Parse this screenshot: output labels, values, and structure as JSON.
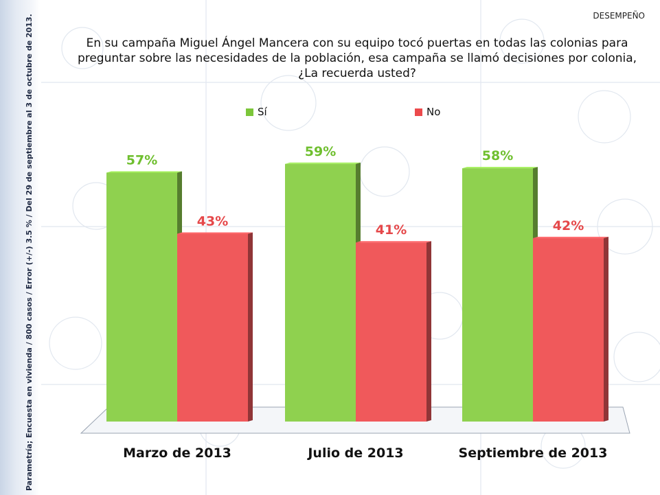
{
  "header": {
    "section": "DESEMPEÑO"
  },
  "sidenote": "Parametría; Encuesta en vivienda / 800 casos / Error (+/-) 3.5 % / Del 29 de septiembre al 3 de octubre de 2013.",
  "chart_data": {
    "type": "bar",
    "title": "En su campaña Miguel Ángel Mancera con su equipo tocó puertas en todas las colonias para preguntar sobre las necesidades de la población, esa campaña se llamó decisiones por colonia, ¿La recuerda usted?",
    "categories": [
      "Marzo de 2013",
      "Julio de 2013",
      "Septiembre de 2013"
    ],
    "series": [
      {
        "name": "Sí",
        "values": [
          57,
          59,
          58
        ],
        "labels": [
          "57%",
          "59%",
          "58%"
        ],
        "color": "#8fd14f"
      },
      {
        "name": "No",
        "values": [
          43,
          41,
          42
        ],
        "labels": [
          "43%",
          "41%",
          "42%"
        ],
        "color": "#f0595b"
      }
    ],
    "ylim": [
      0,
      100
    ],
    "legend_position": "top",
    "grid": false
  }
}
